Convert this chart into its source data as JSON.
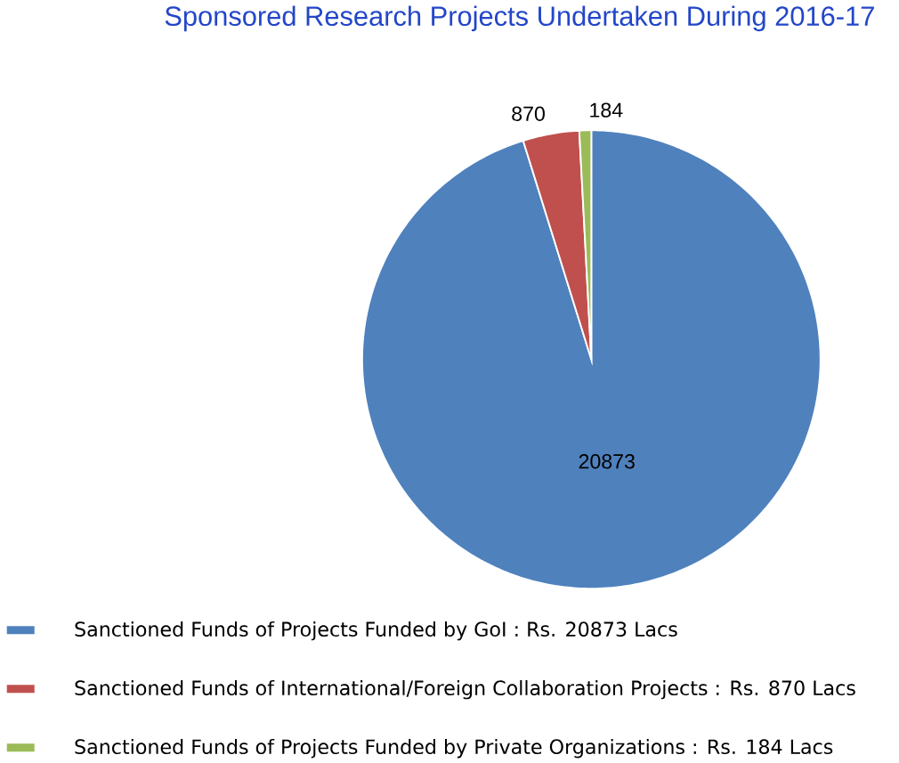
{
  "chart_data": {
    "type": "pie",
    "title": "Sponsored Research Projects Undertaken During  2016-17",
    "categories": [
      "Sanctioned Funds of  Projects Funded by GoI : Rs. 20873 Lacs",
      "Sanctioned Funds of  International/Foreign Collaboration Projects : Rs. 870 Lacs",
      "Sanctioned Funds of  Projects Funded by  Private Organizations : Rs. 184 Lacs"
    ],
    "values": [
      20873,
      870,
      184
    ],
    "colors": [
      "#4f81bd",
      "#c0504d",
      "#9bbb59"
    ],
    "data_labels": true,
    "legend": "bottom"
  }
}
